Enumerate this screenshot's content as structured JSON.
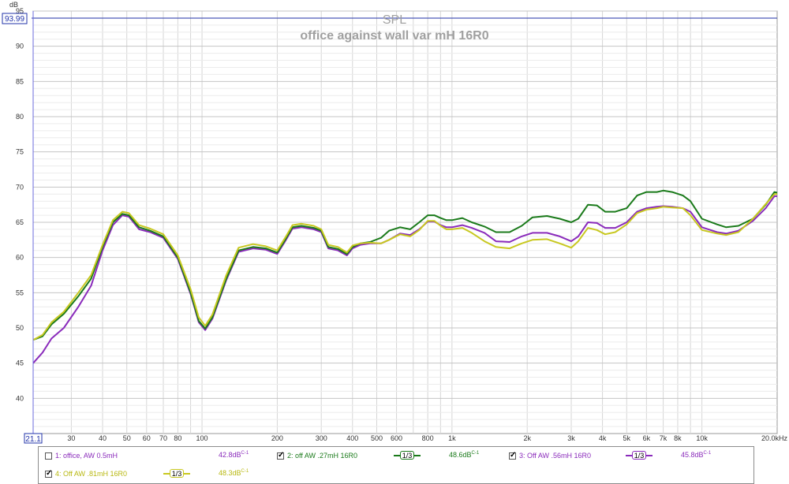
{
  "chart_data": {
    "type": "line",
    "title": "SPL",
    "subtitle": "office against wall var mH 16R0",
    "ylabel": "dB",
    "xscale": "log",
    "xlim": [
      21.1,
      20000
    ],
    "ylim": [
      35,
      95
    ],
    "grid": true,
    "cursor_value": "93.99",
    "x_start_label": "21.1",
    "y_ticks": [
      40,
      45,
      50,
      55,
      60,
      65,
      70,
      75,
      80,
      85,
      90,
      95
    ],
    "x_ticks": [
      {
        "v": 30,
        "label": "30"
      },
      {
        "v": 40,
        "label": "40"
      },
      {
        "v": 50,
        "label": "50"
      },
      {
        "v": 60,
        "label": "60"
      },
      {
        "v": 70,
        "label": "70"
      },
      {
        "v": 80,
        "label": "80"
      },
      {
        "v": 100,
        "label": "100"
      },
      {
        "v": 200,
        "label": "200"
      },
      {
        "v": 300,
        "label": "300"
      },
      {
        "v": 400,
        "label": "400"
      },
      {
        "v": 500,
        "label": "500"
      },
      {
        "v": 600,
        "label": "600"
      },
      {
        "v": 800,
        "label": "800"
      },
      {
        "v": 1000,
        "label": "1k"
      },
      {
        "v": 2000,
        "label": "2k"
      },
      {
        "v": 3000,
        "label": "3k"
      },
      {
        "v": 4000,
        "label": "4k"
      },
      {
        "v": 5000,
        "label": "5k"
      },
      {
        "v": 6000,
        "label": "6k"
      },
      {
        "v": 7000,
        "label": "7k"
      },
      {
        "v": 8000,
        "label": "8k"
      },
      {
        "v": 10000,
        "label": "10k"
      },
      {
        "v": 20000,
        "label": "20.0kHz"
      }
    ],
    "series": [
      {
        "name": "2: off AW .27mH 16R0",
        "color": "#1a7a1a",
        "points": [
          [
            21.1,
            48.3
          ],
          [
            23,
            48.8
          ],
          [
            25,
            50.5
          ],
          [
            28,
            52.0
          ],
          [
            32,
            54.5
          ],
          [
            36,
            57.0
          ],
          [
            40,
            61.5
          ],
          [
            44,
            65.0
          ],
          [
            48,
            66.2
          ],
          [
            51,
            66.0
          ],
          [
            56,
            64.3
          ],
          [
            62,
            63.8
          ],
          [
            70,
            63.0
          ],
          [
            80,
            60.0
          ],
          [
            90,
            55.0
          ],
          [
            97,
            51.0
          ],
          [
            103,
            49.9
          ],
          [
            110,
            51.5
          ],
          [
            125,
            57.0
          ],
          [
            140,
            61.0
          ],
          [
            160,
            61.5
          ],
          [
            180,
            61.3
          ],
          [
            200,
            60.7
          ],
          [
            215,
            62.5
          ],
          [
            230,
            64.3
          ],
          [
            250,
            64.5
          ],
          [
            280,
            64.2
          ],
          [
            300,
            63.8
          ],
          [
            320,
            61.5
          ],
          [
            350,
            61.2
          ],
          [
            380,
            60.5
          ],
          [
            400,
            61.5
          ],
          [
            430,
            62.0
          ],
          [
            470,
            62.2
          ],
          [
            520,
            62.8
          ],
          [
            560,
            63.8
          ],
          [
            620,
            64.3
          ],
          [
            680,
            64.0
          ],
          [
            740,
            65.0
          ],
          [
            800,
            66.0
          ],
          [
            850,
            66.0
          ],
          [
            900,
            65.6
          ],
          [
            950,
            65.3
          ],
          [
            1000,
            65.3
          ],
          [
            1100,
            65.6
          ],
          [
            1200,
            65.0
          ],
          [
            1350,
            64.4
          ],
          [
            1500,
            63.6
          ],
          [
            1700,
            63.6
          ],
          [
            1900,
            64.5
          ],
          [
            2100,
            65.7
          ],
          [
            2400,
            65.9
          ],
          [
            2700,
            65.5
          ],
          [
            3000,
            65.0
          ],
          [
            3200,
            65.5
          ],
          [
            3500,
            67.5
          ],
          [
            3800,
            67.4
          ],
          [
            4100,
            66.5
          ],
          [
            4500,
            66.5
          ],
          [
            5000,
            67.0
          ],
          [
            5500,
            68.8
          ],
          [
            6000,
            69.3
          ],
          [
            6600,
            69.3
          ],
          [
            7000,
            69.5
          ],
          [
            7600,
            69.3
          ],
          [
            8400,
            68.8
          ],
          [
            9000,
            68.0
          ],
          [
            10000,
            65.5
          ],
          [
            11500,
            64.7
          ],
          [
            12500,
            64.3
          ],
          [
            14000,
            64.5
          ],
          [
            16000,
            65.5
          ],
          [
            18000,
            67.5
          ],
          [
            19500,
            69.3
          ],
          [
            20000,
            69.2
          ]
        ]
      },
      {
        "name": "3: Off AW .56mH 16R0",
        "color": "#8a2bbb",
        "points": [
          [
            21.1,
            45.0
          ],
          [
            23,
            46.5
          ],
          [
            25,
            48.5
          ],
          [
            28,
            50.0
          ],
          [
            32,
            53.0
          ],
          [
            36,
            56.0
          ],
          [
            40,
            61.0
          ],
          [
            44,
            64.6
          ],
          [
            48,
            66.0
          ],
          [
            51,
            65.8
          ],
          [
            56,
            64.0
          ],
          [
            62,
            63.6
          ],
          [
            70,
            62.8
          ],
          [
            80,
            59.8
          ],
          [
            90,
            54.8
          ],
          [
            97,
            50.8
          ],
          [
            103,
            49.7
          ],
          [
            110,
            51.3
          ],
          [
            125,
            56.8
          ],
          [
            140,
            60.8
          ],
          [
            160,
            61.3
          ],
          [
            180,
            61.1
          ],
          [
            200,
            60.5
          ],
          [
            215,
            62.3
          ],
          [
            230,
            64.1
          ],
          [
            250,
            64.3
          ],
          [
            280,
            64.0
          ],
          [
            300,
            63.6
          ],
          [
            320,
            61.3
          ],
          [
            350,
            61.0
          ],
          [
            380,
            60.3
          ],
          [
            400,
            61.3
          ],
          [
            430,
            61.8
          ],
          [
            470,
            62.0
          ],
          [
            520,
            62.0
          ],
          [
            560,
            62.5
          ],
          [
            620,
            63.4
          ],
          [
            680,
            63.2
          ],
          [
            740,
            64.0
          ],
          [
            800,
            65.1
          ],
          [
            850,
            65.1
          ],
          [
            900,
            64.6
          ],
          [
            950,
            64.3
          ],
          [
            1000,
            64.3
          ],
          [
            1100,
            64.6
          ],
          [
            1200,
            64.2
          ],
          [
            1350,
            63.5
          ],
          [
            1500,
            62.3
          ],
          [
            1700,
            62.2
          ],
          [
            1900,
            63.0
          ],
          [
            2100,
            63.5
          ],
          [
            2400,
            63.5
          ],
          [
            2700,
            63.0
          ],
          [
            3000,
            62.3
          ],
          [
            3200,
            63.0
          ],
          [
            3500,
            65.0
          ],
          [
            3800,
            64.9
          ],
          [
            4100,
            64.2
          ],
          [
            4500,
            64.2
          ],
          [
            5000,
            65.0
          ],
          [
            5500,
            66.5
          ],
          [
            6000,
            67.0
          ],
          [
            6600,
            67.2
          ],
          [
            7000,
            67.3
          ],
          [
            7600,
            67.2
          ],
          [
            8400,
            67.0
          ],
          [
            9000,
            66.5
          ],
          [
            10000,
            64.3
          ],
          [
            11500,
            63.6
          ],
          [
            12500,
            63.4
          ],
          [
            14000,
            63.8
          ],
          [
            16000,
            65.2
          ],
          [
            18000,
            67.0
          ],
          [
            19500,
            68.7
          ],
          [
            20000,
            68.7
          ]
        ]
      },
      {
        "name": "4: Off AW .81mH 16R0",
        "color": "#c8c820",
        "points": [
          [
            21.1,
            48.3
          ],
          [
            23,
            49.0
          ],
          [
            25,
            50.8
          ],
          [
            28,
            52.3
          ],
          [
            32,
            55.0
          ],
          [
            36,
            57.5
          ],
          [
            40,
            61.8
          ],
          [
            44,
            65.3
          ],
          [
            48,
            66.5
          ],
          [
            51,
            66.3
          ],
          [
            56,
            64.6
          ],
          [
            62,
            64.1
          ],
          [
            70,
            63.3
          ],
          [
            80,
            60.3
          ],
          [
            90,
            55.5
          ],
          [
            97,
            51.5
          ],
          [
            103,
            50.3
          ],
          [
            110,
            51.9
          ],
          [
            125,
            57.5
          ],
          [
            140,
            61.4
          ],
          [
            160,
            61.9
          ],
          [
            180,
            61.6
          ],
          [
            200,
            61.0
          ],
          [
            215,
            62.8
          ],
          [
            230,
            64.6
          ],
          [
            250,
            64.8
          ],
          [
            280,
            64.5
          ],
          [
            300,
            64.0
          ],
          [
            320,
            61.8
          ],
          [
            350,
            61.5
          ],
          [
            380,
            60.7
          ],
          [
            400,
            61.7
          ],
          [
            430,
            62.0
          ],
          [
            470,
            62.1
          ],
          [
            520,
            62.0
          ],
          [
            560,
            62.5
          ],
          [
            620,
            63.3
          ],
          [
            680,
            63.0
          ],
          [
            740,
            63.9
          ],
          [
            800,
            65.2
          ],
          [
            850,
            65.2
          ],
          [
            900,
            64.5
          ],
          [
            950,
            64.0
          ],
          [
            1000,
            64.0
          ],
          [
            1100,
            64.2
          ],
          [
            1200,
            63.5
          ],
          [
            1350,
            62.3
          ],
          [
            1500,
            61.5
          ],
          [
            1700,
            61.3
          ],
          [
            1900,
            62.0
          ],
          [
            2100,
            62.5
          ],
          [
            2400,
            62.6
          ],
          [
            2700,
            62.0
          ],
          [
            3000,
            61.4
          ],
          [
            3200,
            62.3
          ],
          [
            3500,
            64.2
          ],
          [
            3800,
            63.9
          ],
          [
            4100,
            63.3
          ],
          [
            4500,
            63.6
          ],
          [
            5000,
            64.7
          ],
          [
            5500,
            66.3
          ],
          [
            6000,
            66.8
          ],
          [
            6600,
            67.0
          ],
          [
            7000,
            67.2
          ],
          [
            7600,
            67.1
          ],
          [
            8400,
            67.0
          ],
          [
            9000,
            66.0
          ],
          [
            10000,
            63.9
          ],
          [
            11500,
            63.4
          ],
          [
            12500,
            63.2
          ],
          [
            14000,
            63.6
          ],
          [
            16000,
            65.5
          ],
          [
            18000,
            67.6
          ],
          [
            19500,
            69.0
          ],
          [
            20000,
            69.0
          ]
        ]
      }
    ]
  },
  "legend": {
    "items": [
      {
        "label": "1: office, AW 0.5mH",
        "value": "42.8dB",
        "sup": "C-1",
        "color": "#8a2bbb",
        "checked": false,
        "smoothing": ""
      },
      {
        "label": "2: off AW .27mH 16R0",
        "value": "48.6dB",
        "sup": "C-1",
        "color": "#1a7a1a",
        "checked": true,
        "smoothing": "1/3"
      },
      {
        "label": "3: Off AW .56mH 16R0",
        "value": "45.8dB",
        "sup": "C-1",
        "color": "#8a2bbb",
        "checked": true,
        "smoothing": "1/3"
      },
      {
        "label": "4: Off AW .81mH 16R0",
        "value": "48.3dB",
        "sup": "C-1",
        "color": "#c8c820",
        "checked": true,
        "smoothing": "1/3"
      }
    ]
  }
}
